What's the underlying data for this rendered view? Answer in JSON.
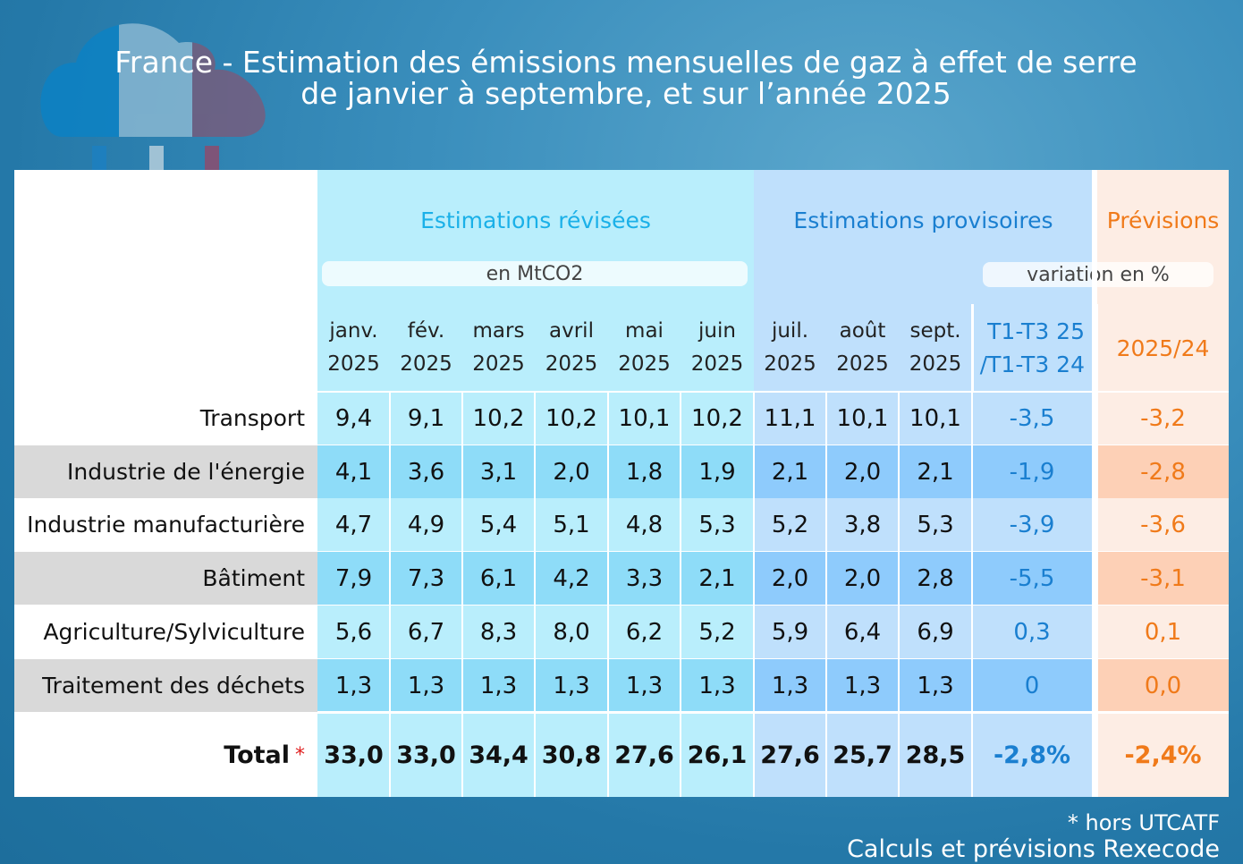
{
  "title": {
    "line1": "France - Estimation des émissions mensuelles  de gaz à effet de serre",
    "line2": "de janvier à septembre, et sur l’année 2025"
  },
  "groups": {
    "revised": "Estimations révisées",
    "provisional": "Estimations provisoires",
    "forecast": "Prévisions"
  },
  "units": {
    "level": "en MtCO2",
    "variation": "variation en %"
  },
  "colors": {
    "revised": "#b9eefc",
    "revised_dark": "#8edcf8",
    "provisional": "#bfe0fc",
    "provisional_dark": "#8ecbfc",
    "forecast": "#fdede4",
    "forecast_dark": "#fdd0b6",
    "label_dark": "#d9d9d9",
    "blue_text": "#1a7fd0",
    "cyan_text": "#1ab0e8",
    "orange_text": "#f07a1a"
  },
  "chart_data": {
    "type": "table",
    "columns": [
      [
        "janv.",
        "2025"
      ],
      [
        "fév.",
        "2025"
      ],
      [
        "mars",
        "2025"
      ],
      [
        "avril",
        "2025"
      ],
      [
        "mai",
        "2025"
      ],
      [
        "juin",
        "2025"
      ],
      [
        "juil.",
        "2025"
      ],
      [
        "août",
        "2025"
      ],
      [
        "sept.",
        "2025"
      ],
      [
        "T1-T3 25",
        "/T1-T3 24"
      ],
      [
        "2025/24"
      ]
    ],
    "rows": [
      {
        "label": "Transport",
        "values": [
          "9,4",
          "9,1",
          "10,2",
          "10,2",
          "10,1",
          "10,2",
          "11,1",
          "10,1",
          "10,1",
          "-3,5",
          "-3,2"
        ]
      },
      {
        "label": "Industrie de l'énergie",
        "values": [
          "4,1",
          "3,6",
          "3,1",
          "2,0",
          "1,8",
          "1,9",
          "2,1",
          "2,0",
          "2,1",
          "-1,9",
          "-2,8"
        ]
      },
      {
        "label": "Industrie manufacturière",
        "values": [
          "4,7",
          "4,9",
          "5,4",
          "5,1",
          "4,8",
          "5,3",
          "5,2",
          "3,8",
          "5,3",
          "-3,9",
          "-3,6"
        ]
      },
      {
        "label": "Bâtiment",
        "values": [
          "7,9",
          "7,3",
          "6,1",
          "4,2",
          "3,3",
          "2,1",
          "2,0",
          "2,0",
          "2,8",
          "-5,5",
          "-3,1"
        ]
      },
      {
        "label": "Agriculture/Sylviculture",
        "values": [
          "5,6",
          "6,7",
          "8,3",
          "8,0",
          "6,2",
          "5,2",
          "5,9",
          "6,4",
          "6,9",
          "0,3",
          "0,1"
        ]
      },
      {
        "label": "Traitement des déchets",
        "values": [
          "1,3",
          "1,3",
          "1,3",
          "1,3",
          "1,3",
          "1,3",
          "1,3",
          "1,3",
          "1,3",
          "0",
          "0,0"
        ]
      }
    ],
    "total": {
      "label": "Total",
      "star": "*",
      "values": [
        "33,0",
        "33,0",
        "34,4",
        "30,8",
        "27,6",
        "26,1",
        "27,6",
        "25,7",
        "28,5",
        "-2,8%",
        "-2,4%"
      ]
    }
  },
  "footnotes": {
    "note": "*  hors UTCATF",
    "source": "Calculs et prévisions Rexecode"
  }
}
